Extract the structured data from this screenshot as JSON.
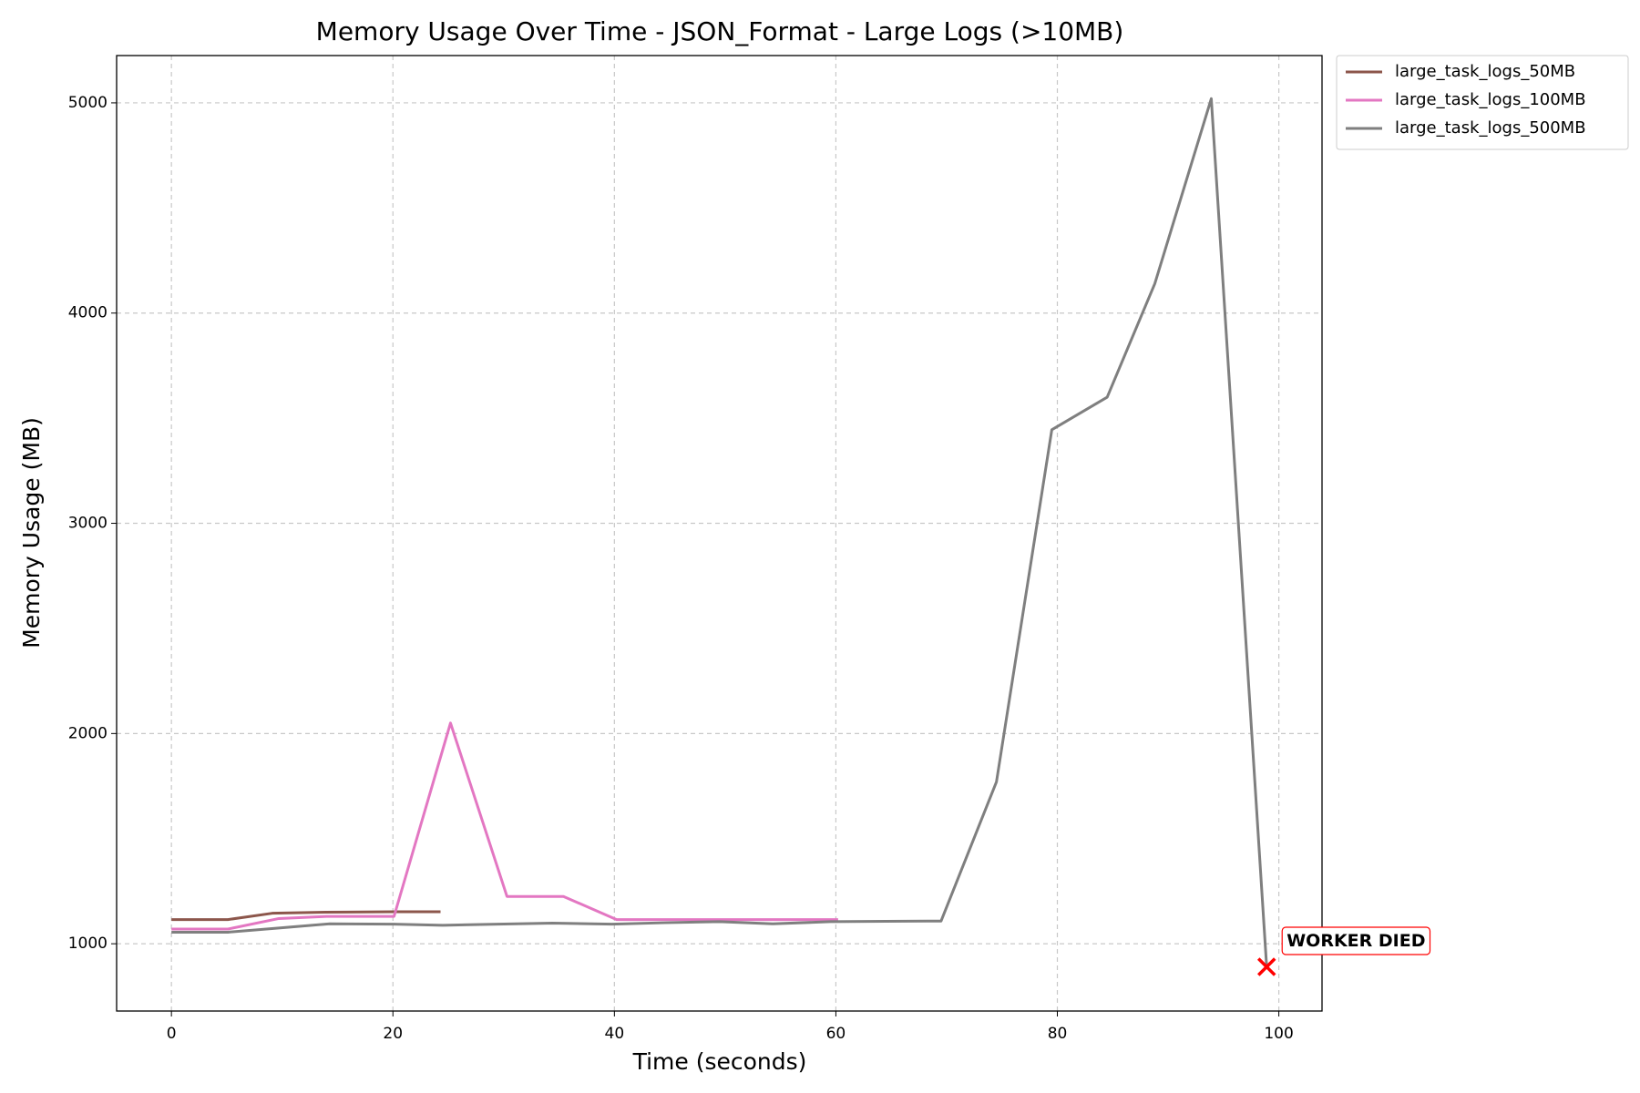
{
  "chart_data": {
    "type": "line",
    "title": "Memory Usage Over Time - JSON_Format - Large Logs (>10MB)",
    "x_label": "Time (seconds)",
    "y_label": "Memory Usage (MB)",
    "series": [
      {
        "name": "large_task_logs_50MB",
        "color": "#8c564b",
        "x": [
          0,
          5.1,
          9.1,
          13.9,
          20.1,
          24.3
        ],
        "values": [
          1115,
          1115,
          1145,
          1150,
          1152,
          1152
        ]
      },
      {
        "name": "large_task_logs_100MB",
        "color": "#e377c2",
        "x": [
          0,
          5.1,
          9.7,
          14.0,
          20.1,
          25.2,
          30.3,
          35.4,
          40.2,
          45.2,
          50.2,
          55.2,
          60.2
        ],
        "values": [
          1070,
          1070,
          1120,
          1130,
          1130,
          2050,
          1225,
          1225,
          1115,
          1115,
          1115,
          1115,
          1115
        ]
      },
      {
        "name": "large_task_logs_500MB",
        "color": "#7f7f7f",
        "x": [
          0,
          5.1,
          9.7,
          14.3,
          20.1,
          24.5,
          29.5,
          34.4,
          39.8,
          44.5,
          49.5,
          54.3,
          59.5,
          64.5,
          69.5,
          74.5,
          79.5,
          84.5,
          88.8,
          93.9,
          98.9
        ],
        "values": [
          1055,
          1055,
          1075,
          1095,
          1093,
          1088,
          1093,
          1098,
          1093,
          1100,
          1105,
          1095,
          1105,
          1107,
          1108,
          1770,
          3445,
          3600,
          4140,
          5020,
          890
        ]
      }
    ],
    "annotations": [
      {
        "text": "WORKER DIED",
        "x": 98.9,
        "y": 890,
        "color": "#ff0000"
      }
    ],
    "xlim": [
      -4.95,
      103.9
    ],
    "ylim": [
      680,
      5225
    ],
    "xticks": [
      0,
      20,
      40,
      60,
      80,
      100
    ],
    "yticks": [
      1000,
      2000,
      3000,
      4000,
      5000
    ],
    "grid": true,
    "legend": "outside upper right"
  }
}
